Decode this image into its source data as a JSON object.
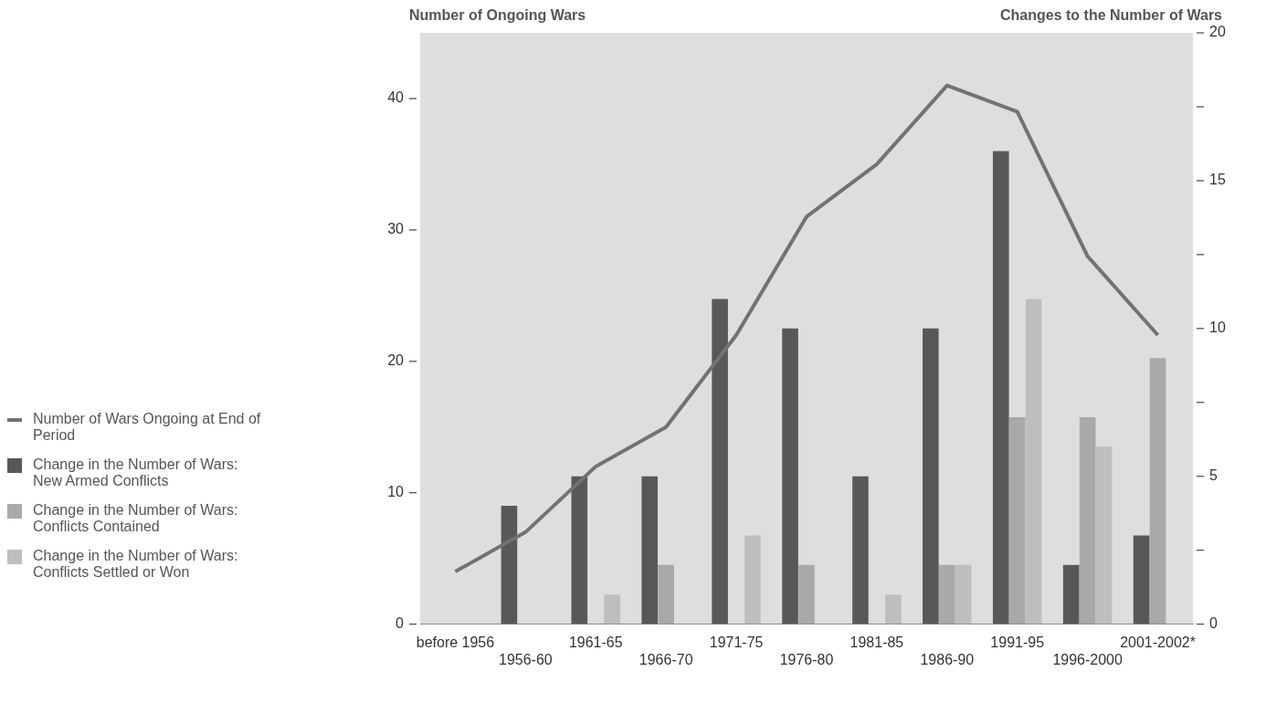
{
  "chart_data": {
    "type": "bar",
    "ylabel": "Number of Ongoing Wars",
    "y2label": "Changes to the Number of Wars",
    "categories": [
      "before 1956",
      "1956-60",
      "1961-65",
      "1966-70",
      "1971-75",
      "1976-80",
      "1981-85",
      "1986-90",
      "1991-95",
      "1996-2000",
      "2001-2002*"
    ],
    "series": [
      {
        "name": "Number of Wars Ongoing at End of Period",
        "type": "line",
        "color": "#727272",
        "values": [
          4,
          7,
          12,
          15,
          22,
          31,
          35,
          41,
          39,
          28,
          22
        ]
      },
      {
        "name": "Change in the Number of Wars: New Armed Conflicts",
        "axis": "y2",
        "color": "#585858",
        "values": [
          null,
          4,
          5,
          5,
          11,
          10,
          5,
          10,
          16,
          2,
          3
        ]
      },
      {
        "name": "Change in the Number of Wars: Conflicts Contained",
        "axis": "y2",
        "color": "#a9a9a9",
        "values": [
          null,
          null,
          null,
          2,
          null,
          2,
          null,
          2,
          7,
          7,
          9
        ]
      },
      {
        "name": "Change in the Number of Wars: Conflicts Settled or Won",
        "axis": "y2",
        "color": "#bebebe",
        "values": [
          null,
          null,
          1,
          null,
          3,
          null,
          1,
          2,
          11,
          6,
          null
        ]
      }
    ],
    "ylim": [
      0,
      45
    ],
    "yticks": [
      0,
      10,
      20,
      30,
      40
    ],
    "y2lim": [
      0,
      20
    ],
    "y2ticks": [
      0,
      {
        "value": 2.5,
        "label": null
      },
      5,
      {
        "value": 7.5,
        "label": null
      },
      10,
      {
        "value": 12.5,
        "label": null
      },
      15,
      {
        "value": 17.5,
        "label": null
      },
      20
    ],
    "legend": "left",
    "marker": "none",
    "line_style": "solid"
  }
}
